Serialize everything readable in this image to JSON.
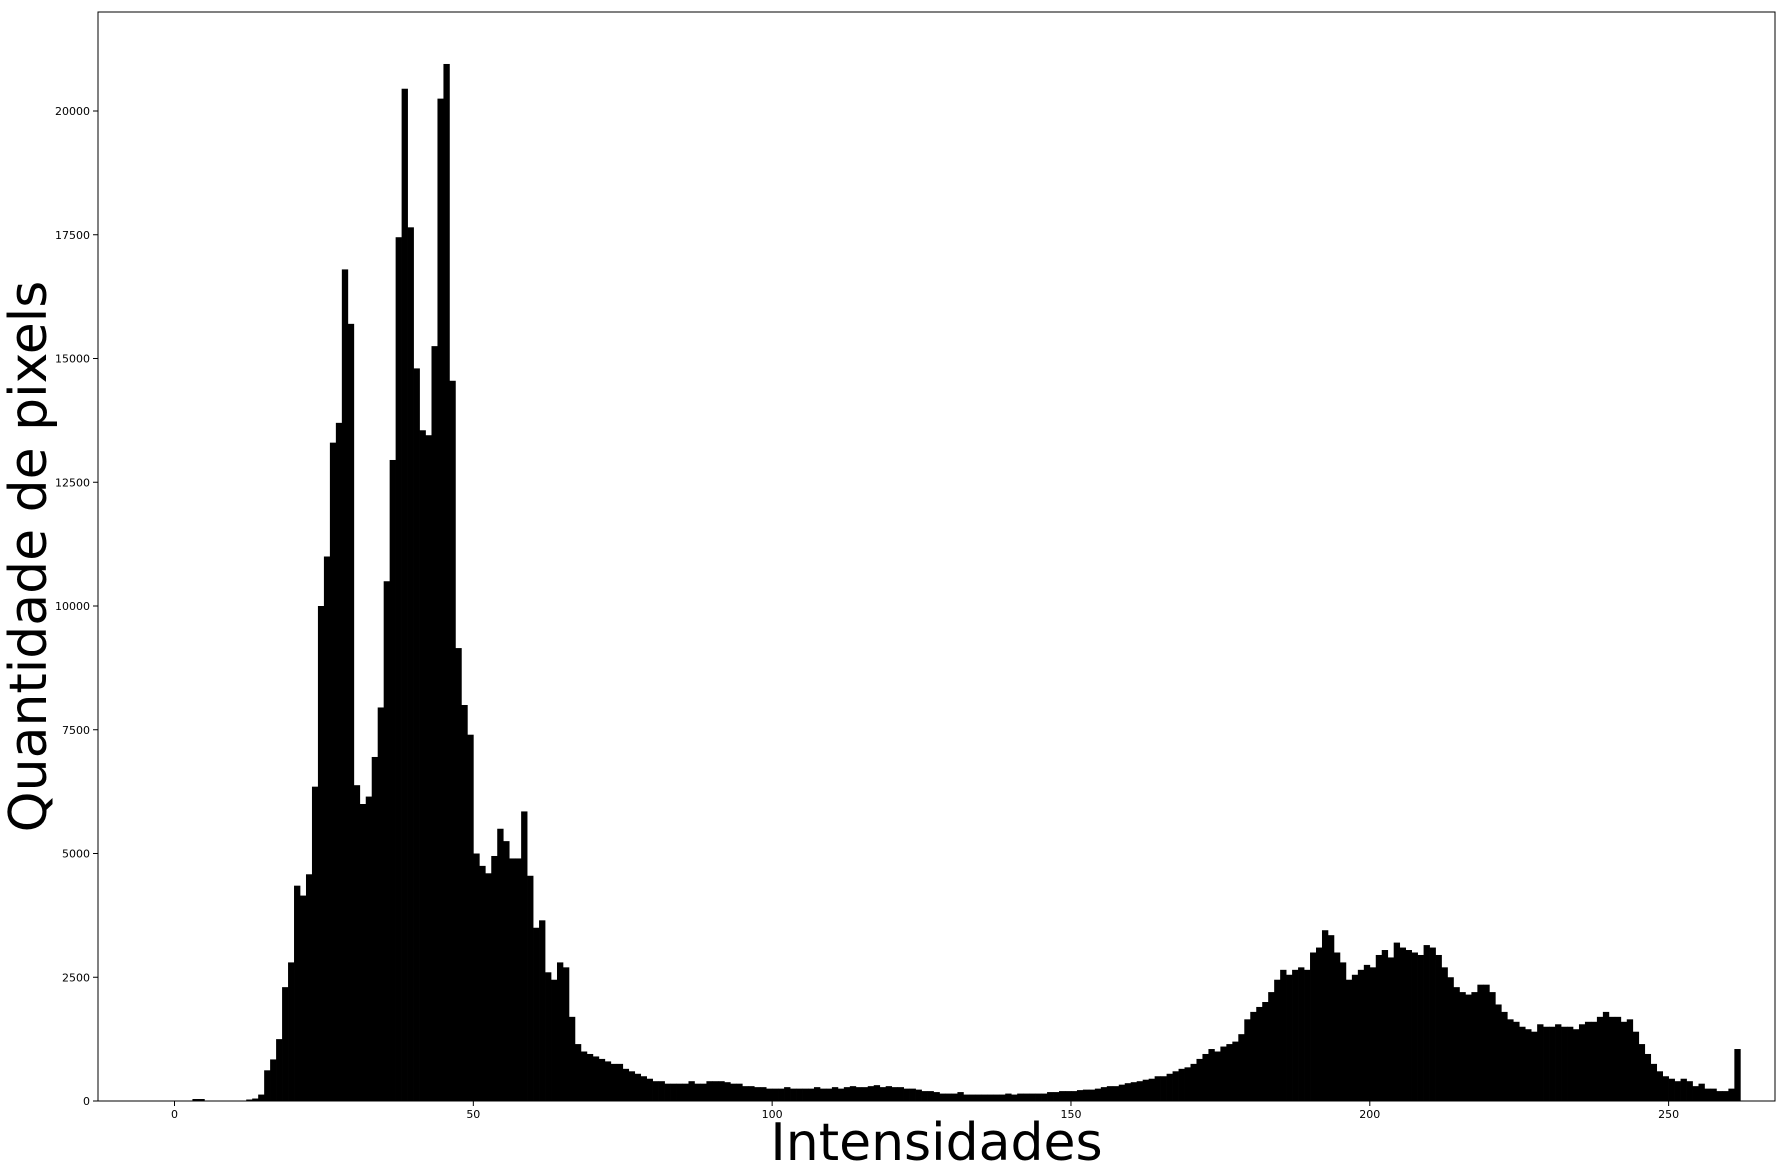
{
  "chart_data": {
    "type": "bar",
    "title": "",
    "xlabel": "Intensidades",
    "ylabel": "Quantidade de pixels",
    "xlim": [
      -12.8,
      267.8
    ],
    "ylim": [
      0,
      22000
    ],
    "grid": false,
    "xticks": [
      0,
      50,
      100,
      150,
      200,
      250
    ],
    "yticks": [
      0,
      2500,
      5000,
      7500,
      10000,
      12500,
      15000,
      17500,
      20000
    ],
    "bar_color": "#000000",
    "series": [
      {
        "values": [
          0,
          0,
          0,
          40,
          40,
          0,
          0,
          0,
          0,
          0,
          0,
          0,
          30,
          50,
          130,
          620,
          840,
          1250,
          2300,
          2800,
          4350,
          4150,
          4580,
          6350,
          10000,
          11000,
          13300,
          13700,
          16800,
          15700,
          6380,
          6000,
          6150,
          6950,
          7950,
          10500,
          12950,
          17450,
          20450,
          17650,
          14800,
          13550,
          13450,
          15250,
          20250,
          20950,
          14550,
          9150,
          8000,
          7400,
          5000,
          4750,
          4600,
          4950,
          5500,
          5250,
          4900,
          4900,
          5850,
          4550,
          3500,
          3650,
          2600,
          2450,
          2800,
          2700,
          1700,
          1150,
          1000,
          950,
          900,
          850,
          800,
          750,
          750,
          650,
          600,
          550,
          500,
          450,
          400,
          400,
          350,
          350,
          350,
          350,
          400,
          350,
          350,
          400,
          400,
          400,
          380,
          350,
          350,
          300,
          300,
          280,
          280,
          250,
          250,
          250,
          280,
          250,
          250,
          250,
          250,
          280,
          250,
          250,
          280,
          250,
          280,
          300,
          280,
          280,
          300,
          320,
          280,
          300,
          280,
          280,
          250,
          250,
          230,
          200,
          200,
          180,
          150,
          150,
          150,
          180,
          130,
          130,
          130,
          130,
          130,
          130,
          130,
          150,
          130,
          150,
          150,
          150,
          150,
          150,
          180,
          180,
          200,
          200,
          200,
          220,
          230,
          230,
          250,
          280,
          300,
          300,
          330,
          360,
          380,
          400,
          430,
          450,
          500,
          500,
          550,
          600,
          650,
          680,
          750,
          850,
          950,
          1050,
          1000,
          1100,
          1150,
          1200,
          1350,
          1650,
          1800,
          1900,
          2000,
          2200,
          2450,
          2650,
          2550,
          2650,
          2700,
          2650,
          3000,
          3100,
          3450,
          3350,
          3000,
          2800,
          2450,
          2550,
          2650,
          2750,
          2700,
          2950,
          3050,
          2900,
          3200,
          3100,
          3050,
          3000,
          2950,
          3150,
          3100,
          2950,
          2700,
          2500,
          2300,
          2200,
          2150,
          2200,
          2350,
          2350,
          2200,
          1950,
          1800,
          1650,
          1600,
          1500,
          1450,
          1400,
          1550,
          1500,
          1500,
          1550,
          1500,
          1500,
          1450,
          1550,
          1600,
          1600,
          1700,
          1800,
          1700,
          1700,
          1600,
          1650,
          1400,
          1150,
          950,
          750,
          600,
          500,
          450,
          400,
          450,
          400,
          300,
          350,
          250,
          250,
          200,
          200,
          250,
          1050
        ]
      }
    ]
  }
}
